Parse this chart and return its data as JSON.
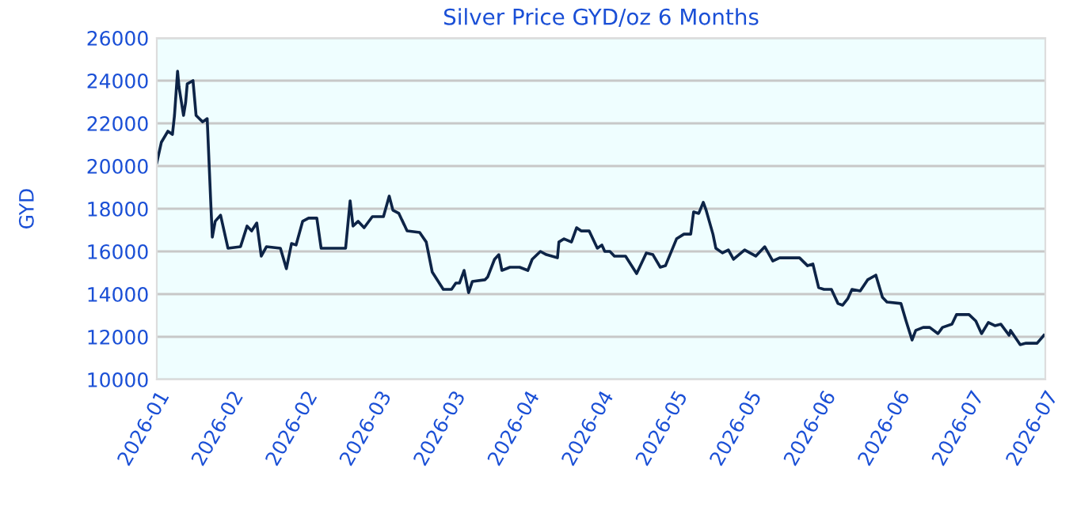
{
  "chart_data": {
    "type": "line",
    "title": "Silver Price GYD/oz 6 Months",
    "ylabel": "GYD",
    "x": [
      "2026-01-18T00:00",
      "2026-01-18T22:00",
      "2026-01-20T06:00",
      "2026-01-21T04:00",
      "2026-01-21T14:00",
      "2026-01-22T05:00",
      "2026-01-22T12:00",
      "2026-01-23T10:00",
      "2026-01-23T20:00",
      "2026-01-24T04:00",
      "2026-01-25T08:00",
      "2026-01-25T23:00",
      "2026-01-27T07:00",
      "2026-01-28T05:00",
      "2026-01-28T23:00",
      "2026-01-29T06:00",
      "2026-01-29T20:00",
      "2026-01-30T22:00",
      "2026-02-01T10:00",
      "2026-02-03T23:00",
      "2026-02-05T07:00",
      "2026-02-06T05:00",
      "2026-02-07T06:00",
      "2026-02-08T04:00",
      "2026-02-09T05:00",
      "2026-02-12T01:00",
      "2026-02-13T06:00",
      "2026-02-14T07:00",
      "2026-02-15T05:00",
      "2026-02-16T13:00",
      "2026-02-17T18:00",
      "2026-02-19T10:00",
      "2026-02-20T07:00",
      "2026-02-25T06:00",
      "2026-02-26T04:00",
      "2026-02-26T18:00",
      "2026-02-27T19:00",
      "2026-03-01T00:00",
      "2026-03-02T16:00",
      "2026-03-04T22:00",
      "2026-03-06T02:00",
      "2026-03-06T20:00",
      "2026-03-08T01:00",
      "2026-03-09T17:00",
      "2026-03-12T06:00",
      "2026-03-13T14:00",
      "2026-03-14T19:00",
      "2026-03-17T01:00",
      "2026-03-18T17:00",
      "2026-03-19T14:00",
      "2026-03-20T08:00",
      "2026-03-21T06:00",
      "2026-03-22T04:00",
      "2026-03-22T22:00",
      "2026-03-25T11:00",
      "2026-03-26T01:00",
      "2026-03-27T10:00",
      "2026-03-28T07:00",
      "2026-03-28T22:00",
      "2026-03-30T13:00",
      "2026-04-01T12:00",
      "2026-04-03T04:00",
      "2026-04-04T01:00",
      "2026-04-05T17:00",
      "2026-04-06T22:00",
      "2026-04-09T04:00",
      "2026-04-09T11:00",
      "2026-04-10T12:00",
      "2026-04-12T00:00",
      "2026-04-13T01:00",
      "2026-04-13T23:00",
      "2026-04-15T14:00",
      "2026-04-17T06:00",
      "2026-04-18T04:00",
      "2026-04-18T18:00",
      "2026-04-19T19:00",
      "2026-04-20T17:00",
      "2026-04-22T23:00",
      "2026-04-25T05:00",
      "2026-04-27T04:00",
      "2026-04-28T12:00",
      "2026-04-30T00:00",
      "2026-05-01T01:00",
      "2026-05-03T07:00",
      "2026-05-04T19:00",
      "2026-05-06T04:00",
      "2026-05-06T18:00",
      "2026-05-07T19:00",
      "2026-05-08T17:00",
      "2026-05-09T07:00",
      "2026-05-10T16:00",
      "2026-05-11T06:00",
      "2026-05-12T14:00",
      "2026-05-13T19:00",
      "2026-05-14T20:00",
      "2026-05-17T02:00",
      "2026-05-19T08:00",
      "2026-05-21T04:00",
      "2026-05-22T19:00",
      "2026-05-24T04:00",
      "2026-05-28T05:00",
      "2026-05-29T20:00",
      "2026-05-30T22:00",
      "2026-06-01T02:00",
      "2026-06-02T04:00",
      "2026-06-03T16:00",
      "2026-06-05T00:00",
      "2026-06-05T22:00",
      "2026-06-06T23:00",
      "2026-06-07T20:00",
      "2026-06-09T12:00",
      "2026-06-11T00:00",
      "2026-06-12T16:00",
      "2026-06-14T00:00",
      "2026-06-14T22:00",
      "2026-06-17T18:00",
      "2026-06-18T19:00",
      "2026-06-20T00:00",
      "2026-06-20T18:00",
      "2026-06-22T06:00",
      "2026-06-23T14:00",
      "2026-06-25T06:00",
      "2026-06-26T04:00",
      "2026-06-28T02:00",
      "2026-06-29T00:00",
      "2026-07-01T13:00",
      "2026-07-02T22:00",
      "2026-07-04T02:00",
      "2026-07-05T11:00",
      "2026-07-06T19:00",
      "2026-07-08T00:00",
      "2026-07-09T16:00",
      "2026-07-09T23:00",
      "2026-07-11T22:00",
      "2026-07-13T02:00",
      "2026-07-15T08:00",
      "2026-07-16T17:00"
    ],
    "values": [
      20150,
      21110,
      21630,
      21480,
      22370,
      24440,
      23700,
      22370,
      22960,
      23850,
      24000,
      22370,
      22070,
      22220,
      18150,
      16670,
      17410,
      17700,
      16150,
      16220,
      17190,
      16960,
      17330,
      15780,
      16220,
      16150,
      15190,
      16370,
      16300,
      17410,
      17560,
      17560,
      16150,
      16150,
      18370,
      17190,
      17410,
      17110,
      17630,
      17630,
      18590,
      17930,
      17780,
      16960,
      16890,
      16440,
      15040,
      14220,
      14220,
      14520,
      14520,
      15110,
      14070,
      14590,
      14670,
      14810,
      15630,
      15850,
      15110,
      15260,
      15260,
      15110,
      15630,
      16000,
      15850,
      15700,
      16440,
      16590,
      16440,
      17110,
      16960,
      16960,
      16150,
      16300,
      16000,
      16000,
      15780,
      15780,
      14960,
      15930,
      15850,
      15260,
      15330,
      16590,
      16810,
      16810,
      17850,
      17780,
      18300,
      17930,
      16810,
      16150,
      15930,
      16070,
      15630,
      16070,
      15780,
      16220,
      15550,
      15700,
      15700,
      15330,
      15410,
      14300,
      14220,
      14220,
      13560,
      13480,
      13780,
      14220,
      14150,
      14670,
      14890,
      13850,
      13630,
      13560,
      12740,
      11850,
      12300,
      12440,
      12440,
      12150,
      12440,
      12590,
      13040,
      13040,
      12740,
      12150,
      12670,
      12520,
      12590,
      12070,
      12300,
      11630,
      11700,
      11700,
      12070
    ],
    "color": "#0d2447",
    "xlim": [
      "2026-01-18",
      "2026-07-17"
    ],
    "xticks": [
      {
        "value": "2026-01-18",
        "label": "2026-01"
      },
      {
        "value": "2026-02-02",
        "label": "2026-02"
      },
      {
        "value": "2026-02-17",
        "label": "2026-02"
      },
      {
        "value": "2026-03-04",
        "label": "2026-03"
      },
      {
        "value": "2026-03-19",
        "label": "2026-03"
      },
      {
        "value": "2026-04-03",
        "label": "2026-04"
      },
      {
        "value": "2026-04-18",
        "label": "2026-04"
      },
      {
        "value": "2026-05-03",
        "label": "2026-05"
      },
      {
        "value": "2026-05-18",
        "label": "2026-05"
      },
      {
        "value": "2026-06-02",
        "label": "2026-06"
      },
      {
        "value": "2026-06-17",
        "label": "2026-06"
      },
      {
        "value": "2026-07-02",
        "label": "2026-07"
      },
      {
        "value": "2026-07-17",
        "label": "2026-07"
      }
    ],
    "ylim": [
      10000,
      26000
    ],
    "yticks": [
      10000,
      12000,
      14000,
      16000,
      18000,
      20000,
      22000,
      24000,
      26000
    ],
    "grid": "y"
  }
}
